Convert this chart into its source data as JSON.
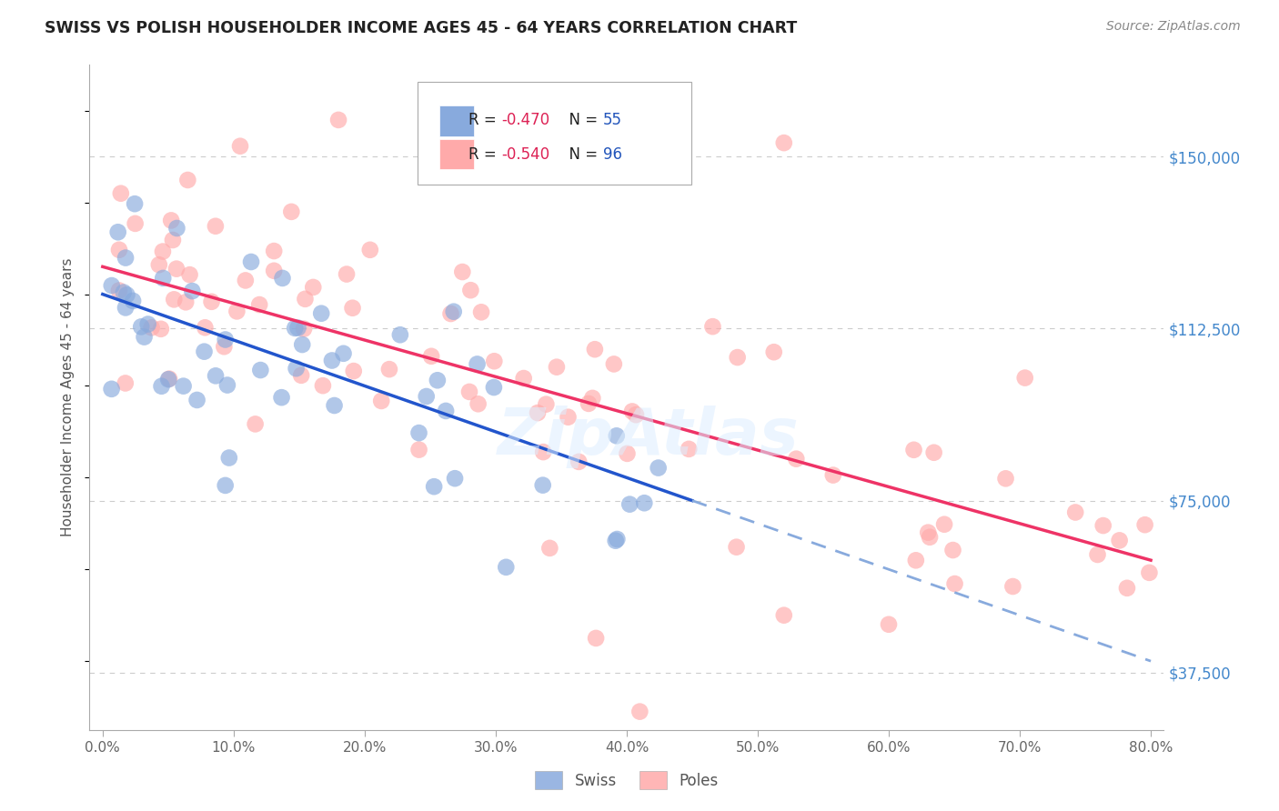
{
  "title": "SWISS VS POLISH HOUSEHOLDER INCOME AGES 45 - 64 YEARS CORRELATION CHART",
  "source": "Source: ZipAtlas.com",
  "ylabel": "Householder Income Ages 45 - 64 years",
  "xlabel_ticks": [
    "0.0%",
    "10.0%",
    "20.0%",
    "30.0%",
    "40.0%",
    "50.0%",
    "60.0%",
    "70.0%",
    "80.0%"
  ],
  "xlabel_vals": [
    0.0,
    10.0,
    20.0,
    30.0,
    40.0,
    50.0,
    60.0,
    70.0,
    80.0
  ],
  "ylabel_ticks": [
    37500,
    75000,
    112500,
    150000
  ],
  "ylabel_labels": [
    "$37,500",
    "$75,000",
    "$112,500",
    "$150,000"
  ],
  "xlim": [
    -1.0,
    81.0
  ],
  "ylim": [
    25000,
    170000
  ],
  "swiss_color": "#88aadd",
  "poles_color": "#ffaaaa",
  "blue_line_color": "#2255cc",
  "pink_line_color": "#ee3366",
  "dash_color": "#88aadd",
  "background_color": "#ffffff",
  "watermark": "ZipAtlas",
  "swiss_R": -0.47,
  "swiss_N": 55,
  "poles_R": -0.54,
  "poles_N": 96,
  "blue_line_x0": 0,
  "blue_line_y0": 120000,
  "blue_line_x1": 45,
  "blue_line_y1": 75000,
  "blue_dash_x0": 45,
  "blue_dash_y0": 75000,
  "blue_dash_x1": 80,
  "blue_dash_y1": 40000,
  "pink_line_x0": 0,
  "pink_line_y0": 126000,
  "pink_line_x1": 80,
  "pink_line_y1": 62000
}
